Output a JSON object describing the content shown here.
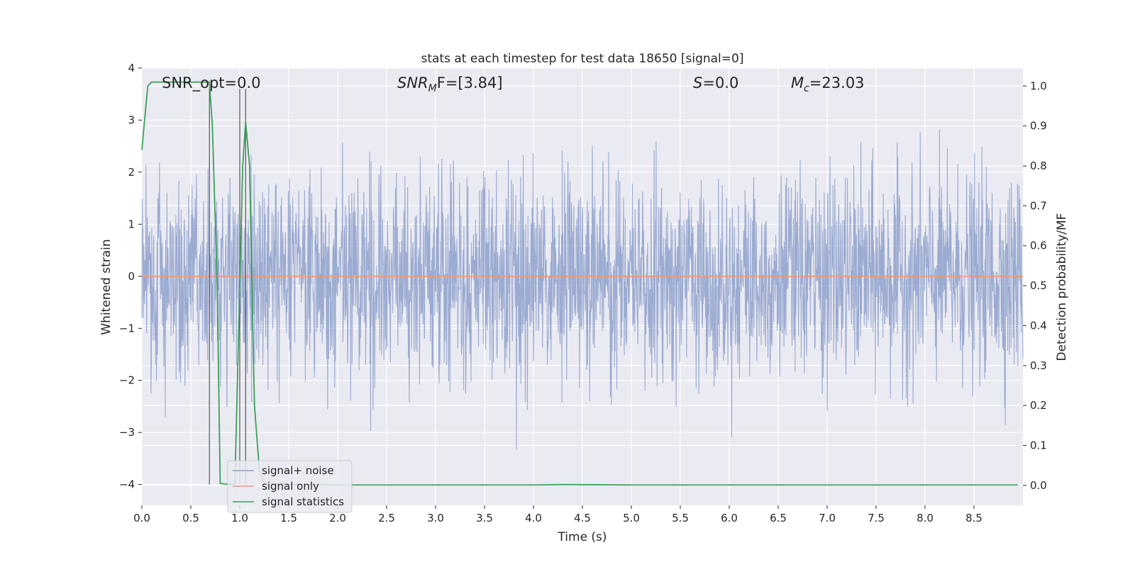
{
  "chart_data": {
    "type": "line",
    "title": "stats at each timestep for test data 18650 [signal=0]",
    "xlabel": "Time (s)",
    "ylabel": "Whitened strain",
    "y2label": "Detection probability/MF",
    "xlim": [
      0.0,
      9.0
    ],
    "ylim": [
      -4.4,
      4.0
    ],
    "y2lim": [
      -0.05,
      1.045
    ],
    "xticks": [
      "0.0",
      "0.5",
      "1.0",
      "1.5",
      "2.0",
      "2.5",
      "3.0",
      "3.5",
      "4.0",
      "4.5",
      "5.0",
      "5.5",
      "6.0",
      "6.5",
      "7.0",
      "7.5",
      "8.0",
      "8.5"
    ],
    "yticks": [
      "4",
      "3",
      "2",
      "1",
      "0",
      "−1",
      "−2",
      "−3",
      "−4"
    ],
    "y2ticks": [
      "1.0",
      "0.9",
      "0.8",
      "0.7",
      "0.6",
      "0.5",
      "0.4",
      "0.3",
      "0.2",
      "0.1",
      "0.0"
    ],
    "grid": true,
    "legend_position": "lower-left",
    "annotations": {
      "snr_opt": "SNR_opt=0.0",
      "snr_mf_base": "SNR",
      "snr_mf_sub": "M",
      "snr_mf_rest": "F=[3.84]",
      "s_var": "S",
      "s_value": "=0.0",
      "mc_base": "M",
      "mc_sub": "c",
      "mc_value": "=23.03"
    },
    "series": [
      {
        "name": "signal+ noise",
        "color": "#8da0cb",
        "kind": "whitened strain noise, amplitude roughly within ±2.5, peaks to about ±3.6"
      },
      {
        "name": "signal only",
        "color": "#e89a7e",
        "y": 0
      },
      {
        "name": "signal statistics",
        "color": "#3f9f5a",
        "axis": "right",
        "x": [
          0.0,
          0.06,
          0.1,
          0.2,
          0.5,
          0.6,
          0.69,
          0.72,
          0.77,
          0.8,
          0.85,
          0.9,
          0.95,
          1.0,
          1.03,
          1.06,
          1.1,
          1.15,
          1.2,
          1.25,
          1.5,
          2.0,
          3.0,
          4.0,
          4.3,
          5.0,
          6.0,
          7.0,
          8.0,
          8.95
        ],
        "y": [
          0.84,
          1.0,
          1.01,
          1.01,
          1.01,
          1.01,
          1.01,
          0.9,
          0.5,
          0.005,
          0.003,
          0.003,
          0.003,
          0.5,
          0.8,
          0.91,
          0.8,
          0.2,
          0.04,
          0.003,
          0.002,
          0.001,
          0.001,
          0.001,
          0.002,
          0.001,
          0.001,
          0.001,
          0.001,
          0.001
        ]
      }
    ],
    "vertical_markers": [
      0.69,
      1.0,
      1.06
    ]
  }
}
